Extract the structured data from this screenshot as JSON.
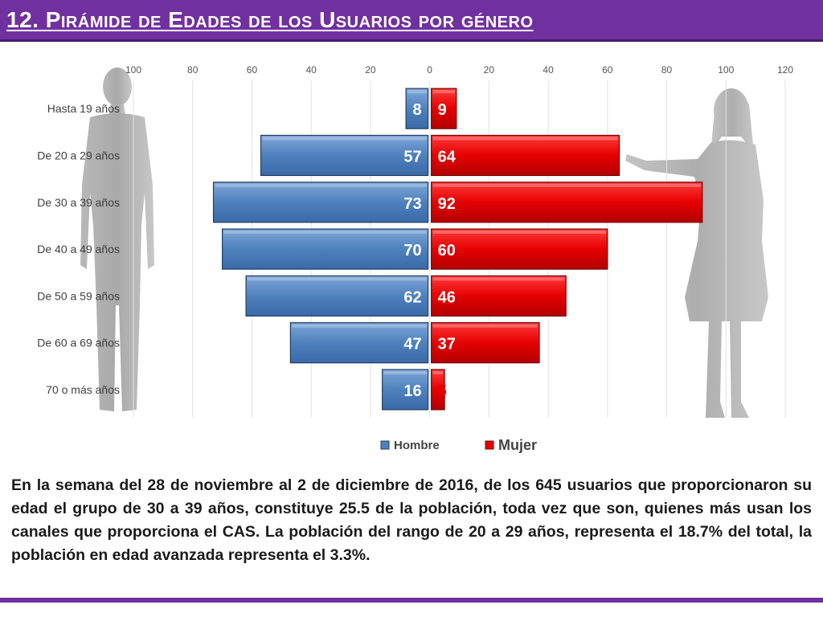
{
  "header": {
    "title": "12. Pirámide de Edades de los Usuarios por género"
  },
  "chart_data": {
    "type": "bar",
    "orientation": "horizontal-pyramid",
    "categories": [
      "Hasta 19 años",
      "De 20 a 29 años",
      "De 30 a 39 años",
      "De 40 a 49 años",
      "De 50 a 59 años",
      "De 60 a 69 años",
      "70 o más años"
    ],
    "series": [
      {
        "name": "Hombre",
        "values": [
          8,
          57,
          73,
          70,
          62,
          47,
          16
        ],
        "color": "#4f81bd",
        "side": "left"
      },
      {
        "name": "Mujer",
        "values": [
          9,
          64,
          92,
          60,
          46,
          37,
          5
        ],
        "color": "#e60000",
        "side": "right"
      }
    ],
    "x_ticks": [
      "100",
      "80",
      "60",
      "40",
      "20",
      "0",
      "20",
      "40",
      "60",
      "80",
      "100",
      "120"
    ],
    "xlim": [
      -100,
      120
    ],
    "legend_position": "bottom",
    "grid": true
  },
  "body_text": "En la semana del 28 de noviembre al 2 de diciembre de 2016, de los 645 usuarios  que proporcionaron su edad el grupo de 30 a 39 años,  constituye 25.5 de la población, toda vez que son, quienes más usan los canales que proporciona el CAS. La población del rango de 20 a 29 años, representa el 18.7% del total, la población en edad avanzada representa el 3.3%.",
  "icons": {
    "male": "male-silhouette",
    "female": "female-silhouette"
  },
  "colors": {
    "header": "#7030a0",
    "hombre": "#4f81bd",
    "mujer": "#e60000"
  }
}
